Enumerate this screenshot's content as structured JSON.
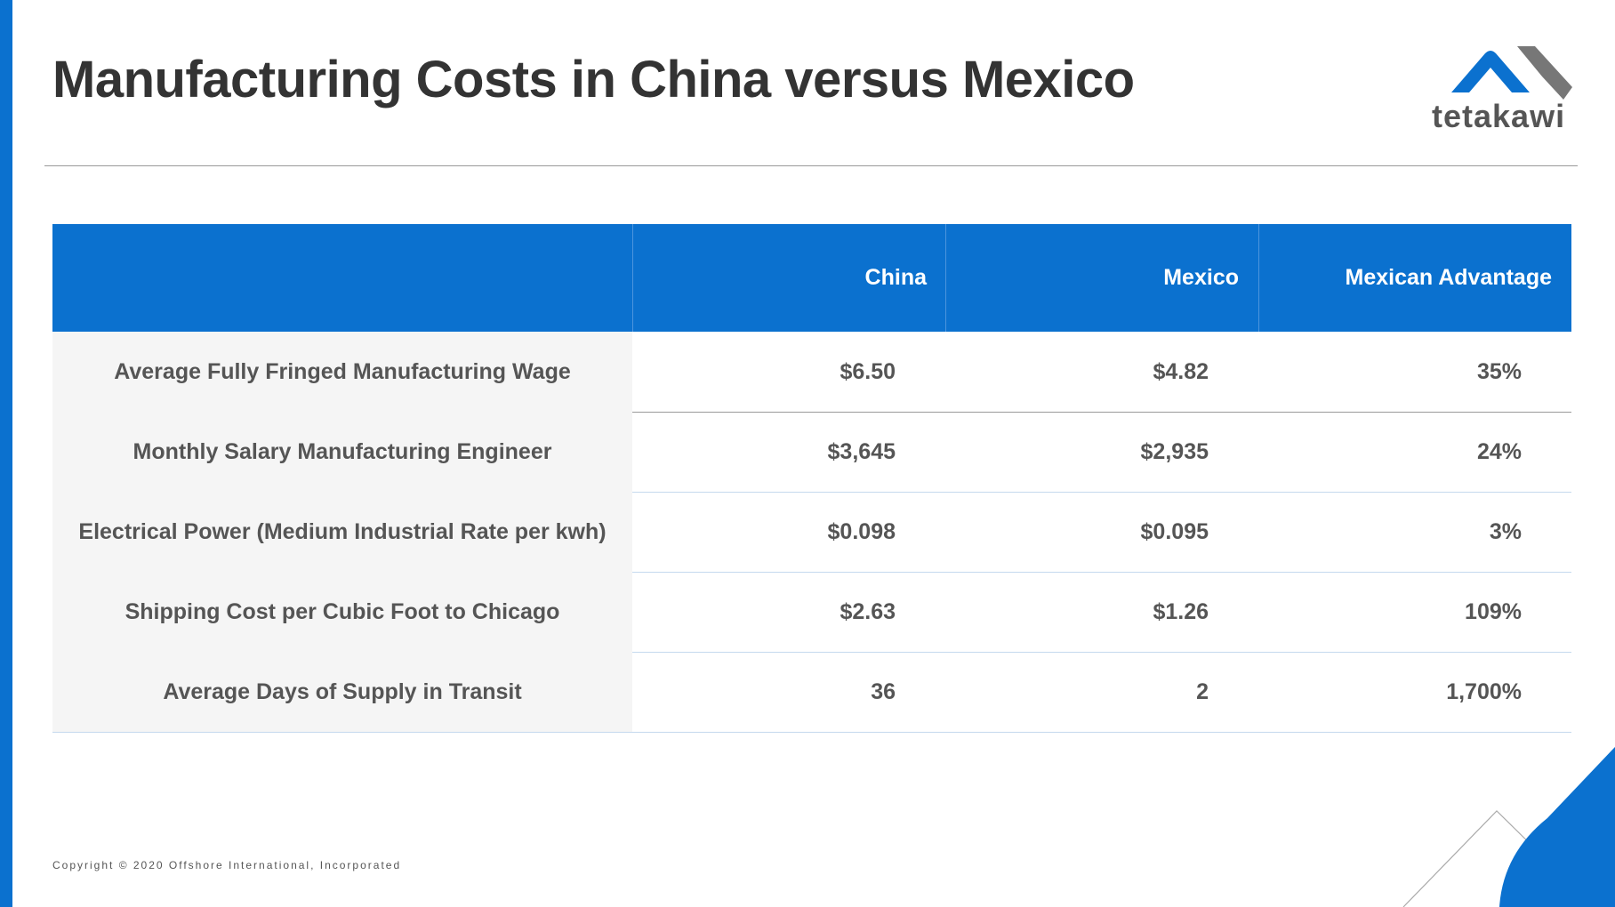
{
  "header": {
    "title": "Manufacturing Costs in China versus Mexico",
    "logo": "tetakawi"
  },
  "table": {
    "columns": [
      "China",
      "Mexico",
      "Mexican Advantage"
    ],
    "rows": [
      [
        "Average Fully Fringed Manufacturing Wage",
        "$6.50",
        "$4.82",
        "35%"
      ],
      [
        "Monthly Salary Manufacturing Engineer",
        "$3,645",
        "$2,935",
        "24%"
      ],
      [
        "Electrical Power (Medium Industrial Rate per kwh)",
        "$0.098",
        "$0.095",
        "3%"
      ],
      [
        "Shipping Cost per Cubic Foot to Chicago",
        "$2.63",
        "$1.26",
        "109%"
      ],
      [
        "Average Days of Supply in Transit",
        "36",
        "2",
        "1,700%"
      ]
    ]
  },
  "footer": {
    "copyright": "Copyright © 2020 Offshore International, Incorporated"
  }
}
